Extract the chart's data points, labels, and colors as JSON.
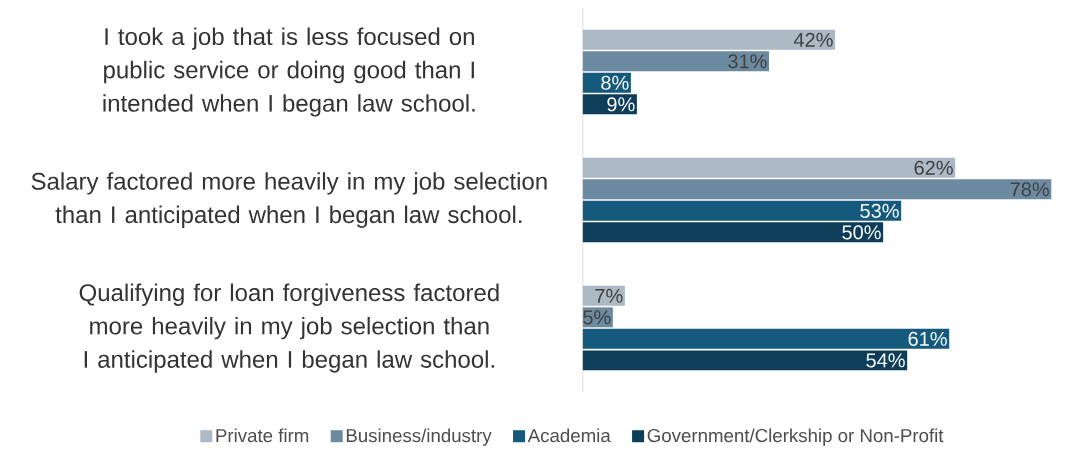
{
  "chart_data": {
    "type": "bar",
    "orientation": "horizontal",
    "legend": "bottom",
    "categories": [
      "I took a job that is less focused on public service or doing good than I intended when I began law school.",
      "Salary factored more heavily in my job selection than I anticipated when I began law school.",
      "Qualifying for loan forgiveness factored more heavily in my job selection than I anticipated when I began law school."
    ],
    "series": [
      {
        "name": "Private firm",
        "color": "#adb9c5",
        "values": [
          42,
          62,
          7
        ],
        "value_labels": [
          "42%",
          "62%",
          "7%"
        ]
      },
      {
        "name": "Business/industry",
        "color": "#6c8aa0",
        "values": [
          31,
          78,
          5
        ],
        "value_labels": [
          "31%",
          "78%",
          "5%"
        ]
      },
      {
        "name": "Academia",
        "color": "#155a7c",
        "values": [
          8,
          53,
          61
        ],
        "value_labels": [
          "8%",
          "53%",
          "61%"
        ]
      },
      {
        "name": "Government/Clerkship or Non-Profit",
        "color": "#0e3d5a",
        "values": [
          9,
          50,
          54
        ],
        "value_labels": [
          "9%",
          "50%",
          "54%"
        ]
      }
    ]
  }
}
